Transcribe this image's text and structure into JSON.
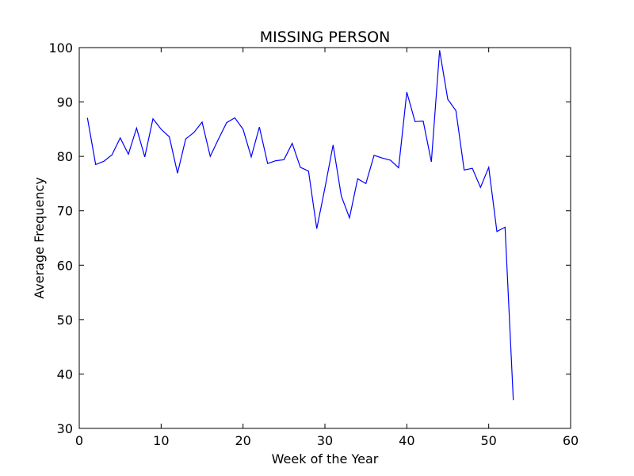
{
  "chart_data": {
    "type": "line",
    "title": "MISSING PERSON",
    "xlabel": "Week of the Year",
    "ylabel": "Average Frequency",
    "xlim": [
      0,
      60
    ],
    "ylim": [
      30,
      100
    ],
    "xticks": [
      0,
      10,
      20,
      30,
      40,
      50,
      60
    ],
    "yticks": [
      30,
      40,
      50,
      60,
      70,
      80,
      90,
      100
    ],
    "grid": false,
    "series": [
      {
        "color": "#0000ff",
        "x": [
          1,
          2,
          3,
          4,
          5,
          6,
          7,
          8,
          9,
          10,
          11,
          12,
          13,
          14,
          15,
          16,
          17,
          18,
          19,
          20,
          21,
          22,
          23,
          24,
          25,
          26,
          27,
          28,
          29,
          30,
          31,
          32,
          33,
          34,
          35,
          36,
          37,
          38,
          39,
          40,
          41,
          42,
          43,
          44,
          45,
          46,
          47,
          48,
          49,
          50,
          51,
          52,
          53
        ],
        "y": [
          87.1,
          78.5,
          79.1,
          80.3,
          83.4,
          80.4,
          85.2,
          79.9,
          86.9,
          85.0,
          83.6,
          76.9,
          83.2,
          84.4,
          86.3,
          80.0,
          83.2,
          86.2,
          87.1,
          85.0,
          79.9,
          85.4,
          78.7,
          79.2,
          79.4,
          82.4,
          78.0,
          77.3,
          66.7,
          74.2,
          82.1,
          72.7,
          68.7,
          75.9,
          75.0,
          80.2,
          79.7,
          79.3,
          77.9,
          91.8,
          86.4,
          86.5,
          79.0,
          99.5,
          90.5,
          88.4,
          77.5,
          77.8,
          74.3,
          78.0,
          66.2,
          67.0,
          35.2
        ]
      }
    ]
  }
}
